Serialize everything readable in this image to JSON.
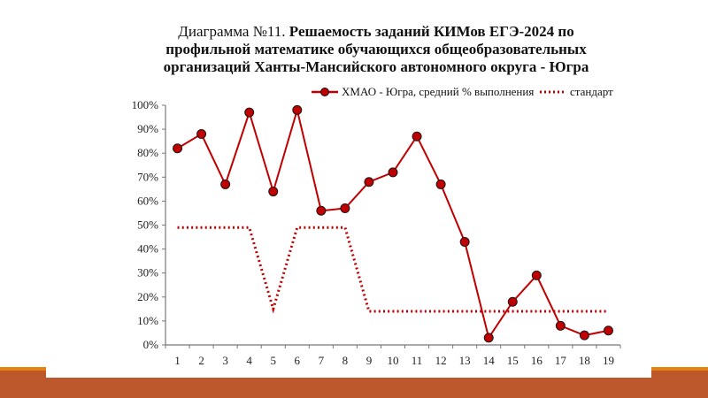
{
  "slide": {
    "accent_color": "#bd582c",
    "accent_line_color": "#e48312"
  },
  "chart_data": {
    "type": "line",
    "title_prefix": "Диаграмма №11.",
    "title_bold_line1": "Решаемость заданий КИМов ЕГЭ-2024 по",
    "title_line2": "профильной математике обучающихся общеобразовательных",
    "title_line3": "организаций Ханты-Мансийского автономного округа - Югра",
    "title": "Диаграмма №11. Решаемость заданий КИМов ЕГЭ-2024 по профильной математике обучающихся общеобразовательных организаций Ханты-Мансийского автономного округа - Югра",
    "xlabel": "",
    "ylabel": "",
    "categories": [
      "1",
      "2",
      "3",
      "4",
      "5",
      "6",
      "7",
      "8",
      "9",
      "10",
      "11",
      "12",
      "13",
      "14",
      "15",
      "16",
      "17",
      "18",
      "19"
    ],
    "series": [
      {
        "name": "ХМАО - Югра, средний % выполнения",
        "style": "solid line with circle markers",
        "color": "#c00000",
        "values": [
          82,
          88,
          67,
          97,
          64,
          98,
          56,
          57,
          68,
          72,
          87,
          67,
          43,
          3,
          18,
          29,
          8,
          4,
          6
        ]
      },
      {
        "name": "стандарт",
        "style": "dotted line",
        "color": "#c00000",
        "values": [
          49,
          49,
          49,
          49,
          15,
          49,
          49,
          49,
          14,
          14,
          14,
          14,
          14,
          14,
          14,
          14,
          14,
          14,
          14
        ]
      }
    ],
    "y_ticks": [
      "0%",
      "10%",
      "20%",
      "30%",
      "40%",
      "50%",
      "60%",
      "70%",
      "80%",
      "90%",
      "100%"
    ],
    "ylim": [
      0,
      100
    ],
    "grid": false,
    "legend_position": "top-right"
  }
}
